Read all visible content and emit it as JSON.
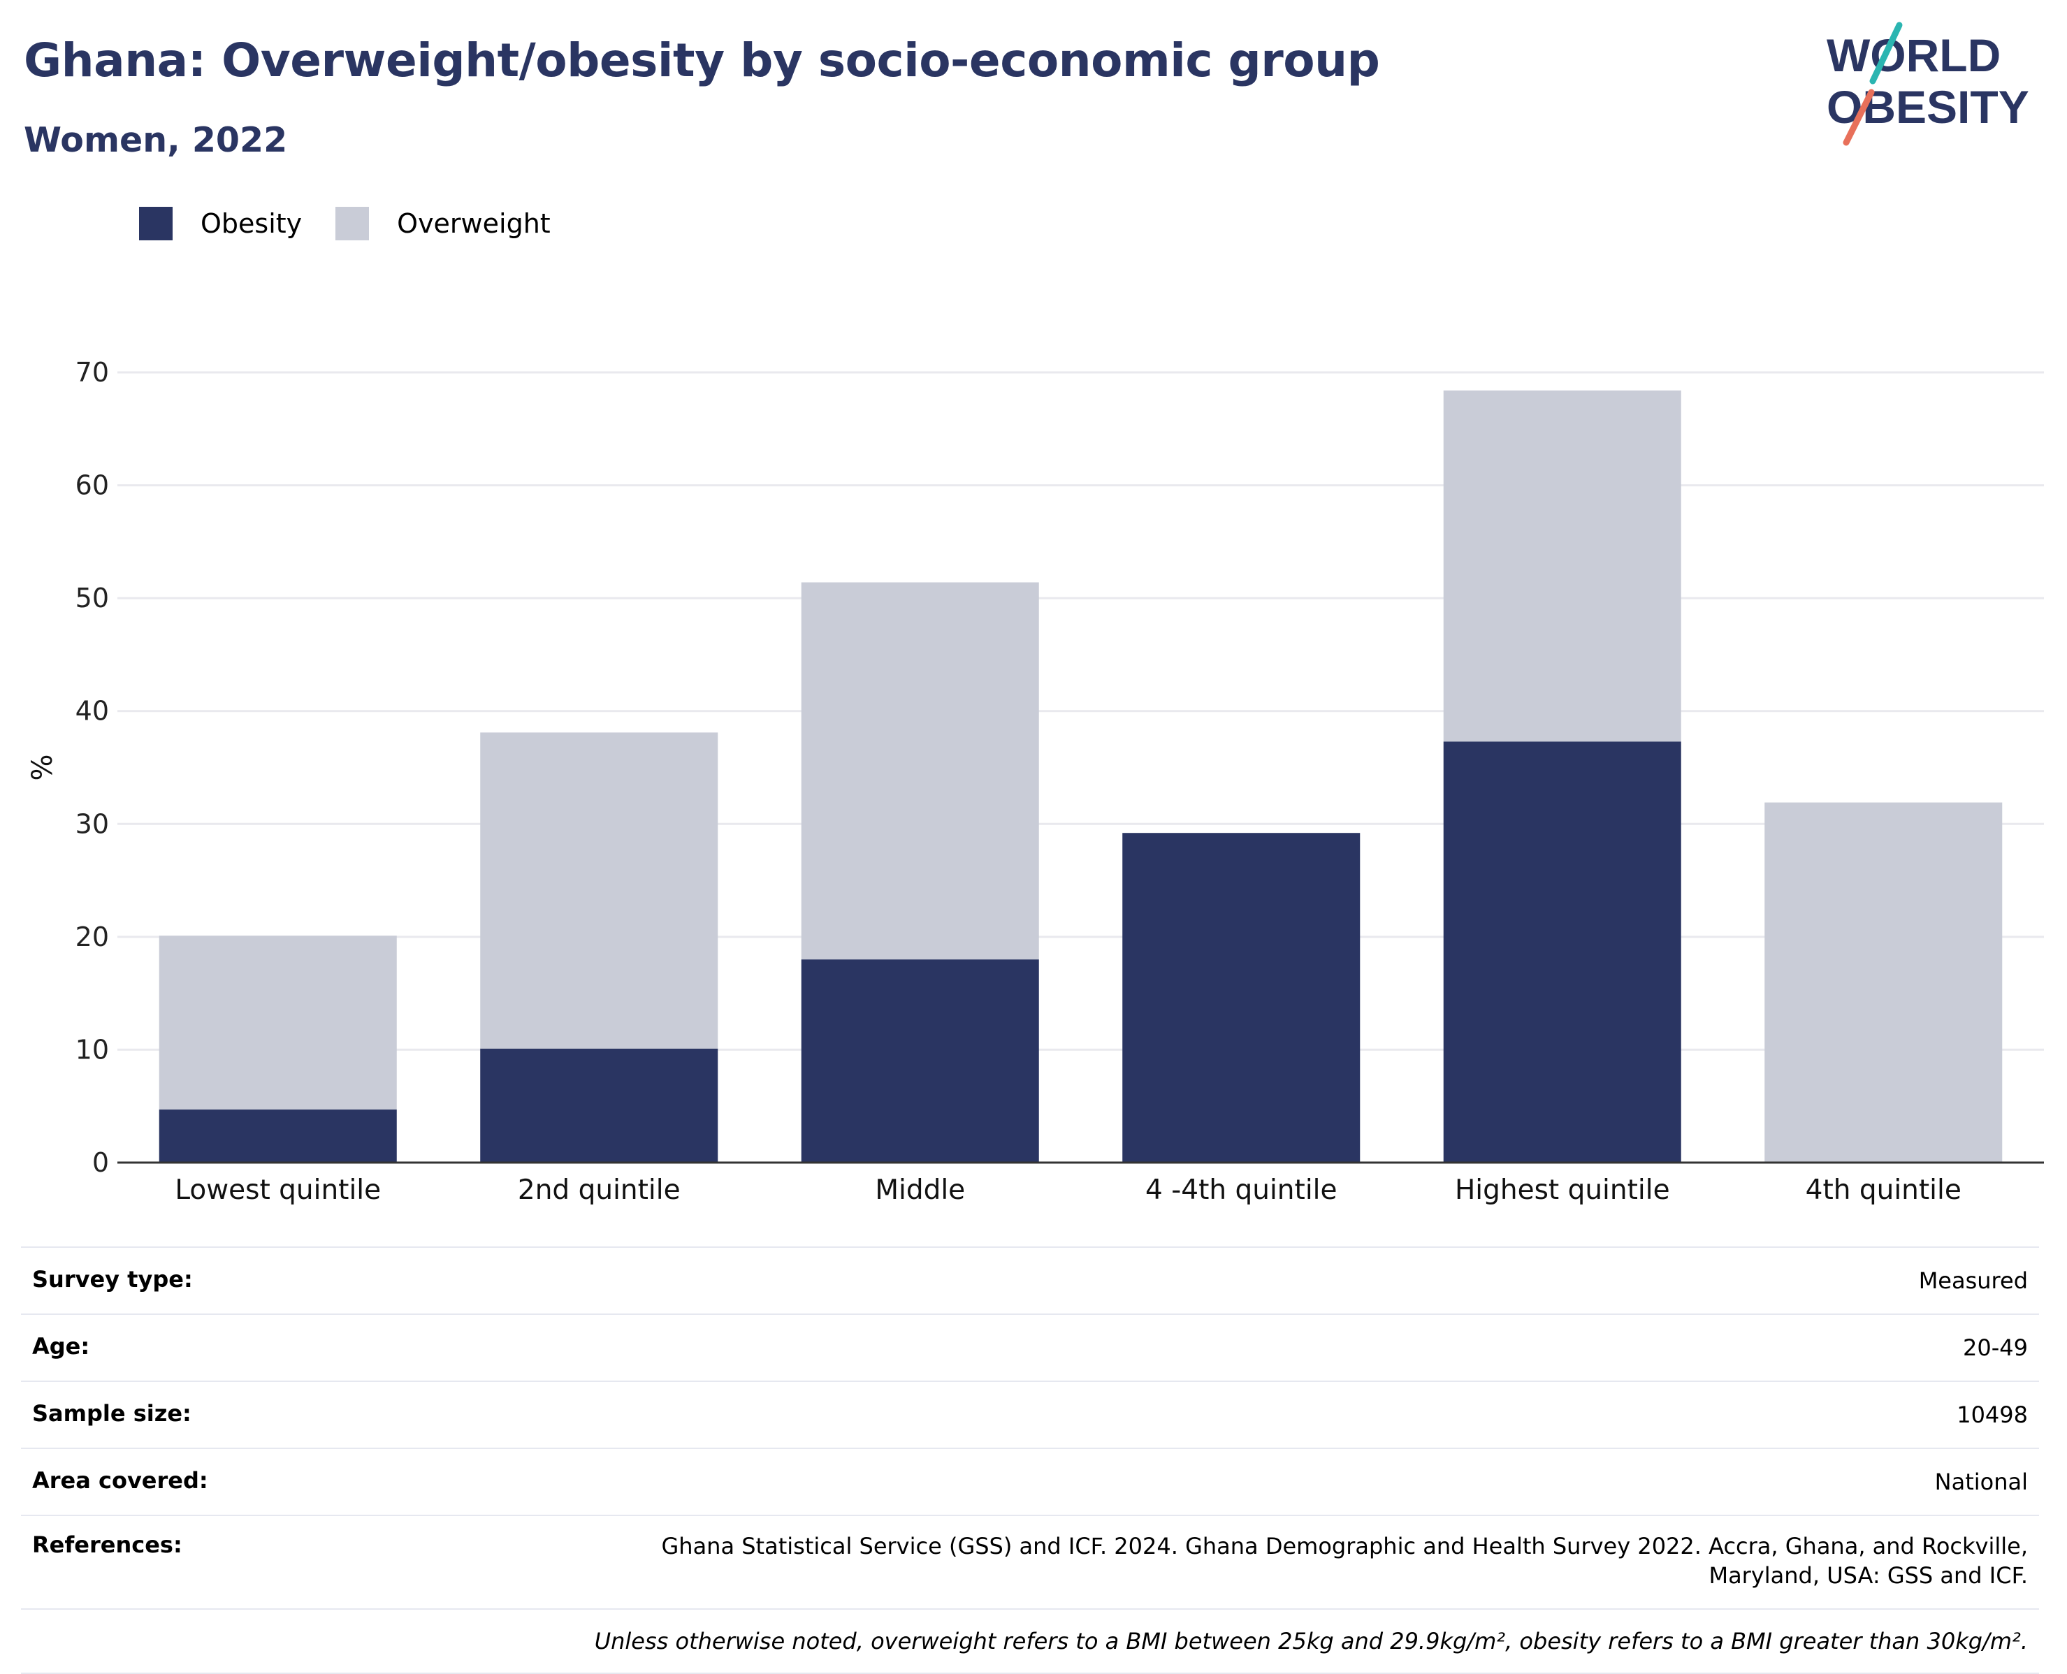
{
  "header": {
    "title": "Ghana: Overweight/obesity by socio-economic group",
    "subtitle": "Women, 2022"
  },
  "logo": {
    "line1": "WORLD",
    "line2": "OBESITY",
    "colors": {
      "text": "#2a3562",
      "slash_teal": "#2bb5b1",
      "slash_coral": "#e8705a"
    }
  },
  "colors": {
    "obesity": "#2a3562",
    "overweight": "#c9ccd7",
    "axis": "#333333",
    "grid": "#e9e9ee"
  },
  "chart_data": {
    "type": "bar",
    "stacked": true,
    "categories": [
      "Lowest quintile",
      "2nd quintile",
      "Middle",
      "4 -4th quintile",
      "Highest quintile",
      "4th quintile"
    ],
    "series": [
      {
        "name": "Obesity",
        "values": [
          4.7,
          10.1,
          18.0,
          29.2,
          37.3,
          0
        ]
      },
      {
        "name": "Overweight",
        "values": [
          15.4,
          28.0,
          33.4,
          0,
          31.1,
          31.9
        ]
      }
    ],
    "ylabel": "%",
    "ylim": [
      0,
      70
    ],
    "yticks": [
      0,
      10,
      20,
      30,
      40,
      50,
      60,
      70
    ],
    "grid": true,
    "legend_position": "top-left"
  },
  "meta": [
    {
      "key": "Survey type:",
      "value": "Measured"
    },
    {
      "key": "Age:",
      "value": "20-49"
    },
    {
      "key": "Sample size:",
      "value": "10498"
    },
    {
      "key": "Area covered:",
      "value": "National"
    },
    {
      "key": "References:",
      "value": "Ghana Statistical Service (GSS) and ICF. 2024. Ghana Demographic and Health Survey 2022. Accra, Ghana, and Rockville, Maryland, USA: GSS and ICF."
    }
  ],
  "footnote": "Unless otherwise noted, overweight refers to a BMI between 25kg and 29.9kg/m², obesity refers to a BMI greater than 30kg/m²."
}
